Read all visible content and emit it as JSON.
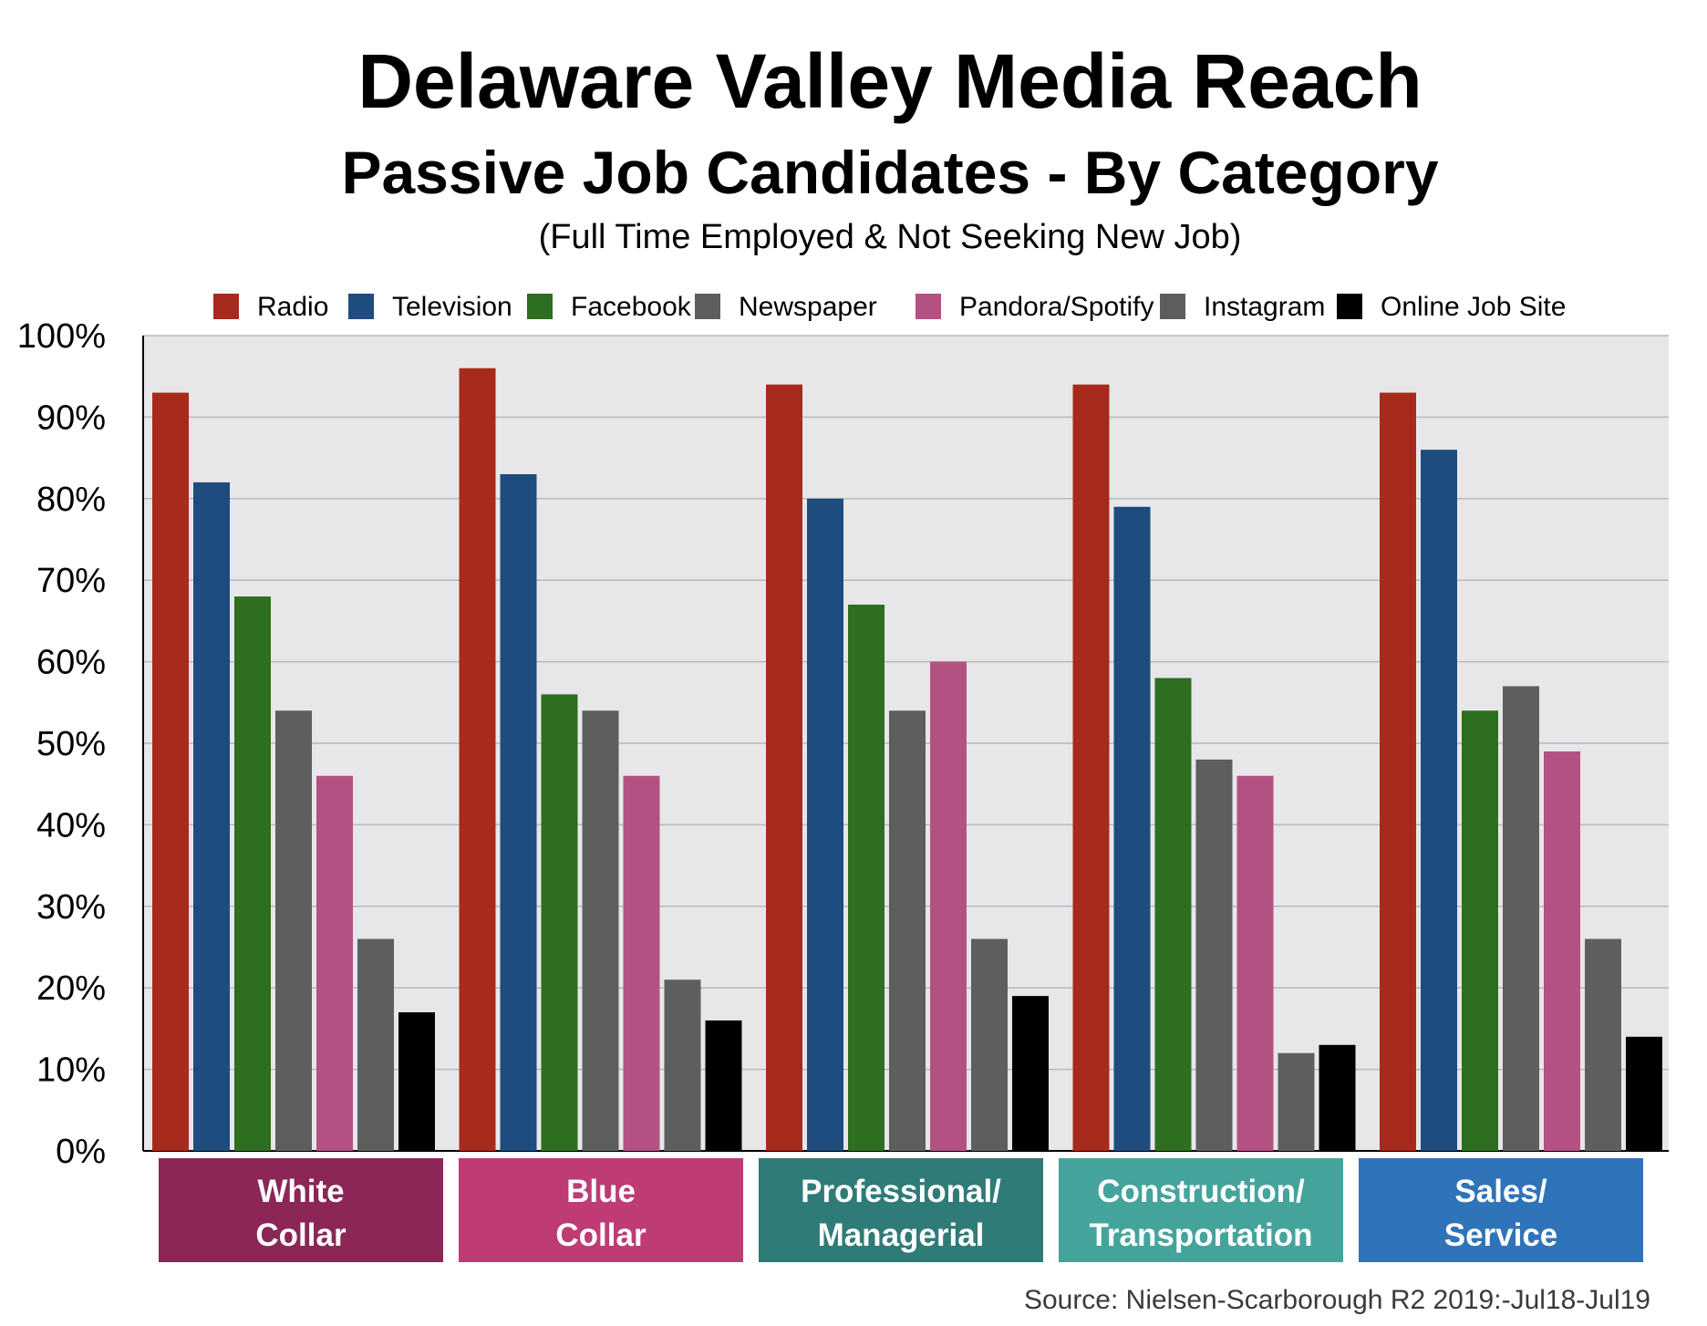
{
  "chart_data": {
    "type": "bar",
    "title": "Delaware Valley Media Reach",
    "subtitle": "Passive Job Candidates - By Category",
    "subsubtitle": "(Full Time Employed & Not Seeking New Job)",
    "source": "Source: Nielsen-Scarborough R2 2019:-Jul18-Jul19",
    "ylim": [
      0,
      100
    ],
    "yticks": [
      "0%",
      "10%",
      "20%",
      "30%",
      "40%",
      "50%",
      "60%",
      "70%",
      "80%",
      "90%",
      "100%"
    ],
    "grid": true,
    "legend_position": "top",
    "categories": [
      {
        "line1": "White",
        "line2": "Collar",
        "color": "#8b2657"
      },
      {
        "line1": "Blue",
        "line2": "Collar",
        "color": "#be3b76"
      },
      {
        "line1": "Professional/",
        "line2": "Managerial",
        "color": "#2f7b77"
      },
      {
        "line1": "Construction/",
        "line2": "Transportation",
        "color": "#44a49c"
      },
      {
        "line1": "Sales/",
        "line2": "Service",
        "color": "#2f74b8"
      }
    ],
    "series": [
      {
        "name": "Radio",
        "color": "#a82a1c",
        "values": [
          93,
          96,
          94,
          94,
          93
        ]
      },
      {
        "name": "Television",
        "color": "#1e4c7e",
        "values": [
          82,
          83,
          80,
          79,
          86
        ]
      },
      {
        "name": "Facebook",
        "color": "#2e6e20",
        "values": [
          68,
          56,
          67,
          58,
          54
        ]
      },
      {
        "name": "Newspaper",
        "color": "#5e5e5e",
        "values": [
          54,
          54,
          54,
          48,
          57
        ]
      },
      {
        "name": "Pandora/Spotify",
        "color": "#b35282",
        "values": [
          46,
          46,
          60,
          46,
          49
        ]
      },
      {
        "name": "Instagram",
        "color": "#5e5e5e",
        "values": [
          26,
          21,
          26,
          12,
          26
        ]
      },
      {
        "name": "Online Job Site",
        "color": "#000000",
        "values": [
          17,
          16,
          19,
          13,
          14
        ]
      }
    ]
  }
}
